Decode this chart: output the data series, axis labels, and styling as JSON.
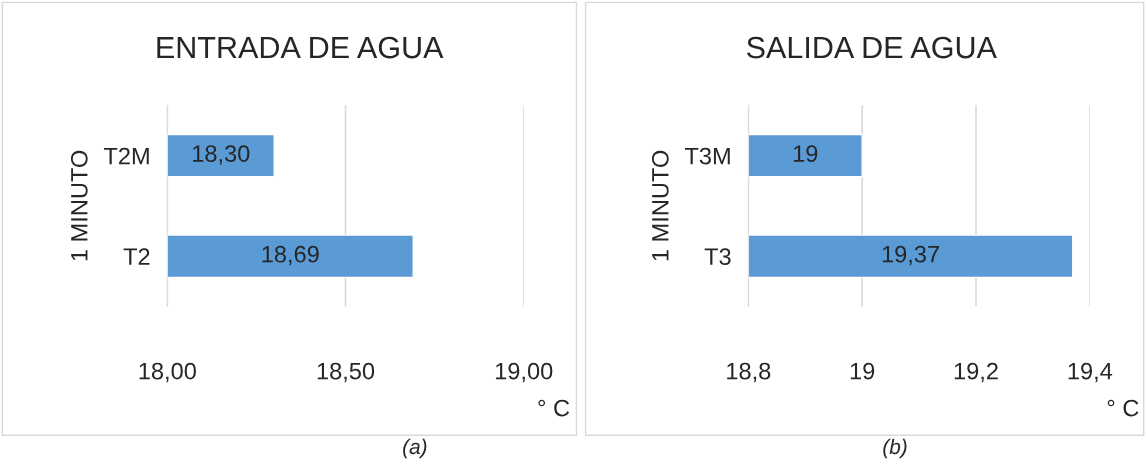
{
  "chart_data": [
    {
      "type": "bar",
      "orientation": "horizontal",
      "title": "ENTRADA DE AGUA",
      "ylabel": "1 MINUTO",
      "xlabel": "° C",
      "categories": [
        "T2M",
        "T2"
      ],
      "values": [
        18.3,
        18.69
      ],
      "value_labels": [
        "18,30",
        "18,69"
      ],
      "color": "#5b9bd5",
      "xlim": [
        18.0,
        19.0
      ],
      "xticks": [
        {
          "value": 18.0,
          "label": "18,00"
        },
        {
          "value": 18.5,
          "label": "18,50"
        },
        {
          "value": 19.0,
          "label": "19,00"
        }
      ],
      "grid": "x",
      "legend": false,
      "annotations": [
        "(a)"
      ]
    },
    {
      "type": "bar",
      "orientation": "horizontal",
      "title": "SALIDA DE AGUA",
      "ylabel": "1 MINUTO",
      "xlabel": "° C",
      "categories": [
        "T3M",
        "T3"
      ],
      "values": [
        19.0,
        19.37
      ],
      "value_labels": [
        "19",
        "19,37"
      ],
      "color": "#5b9bd5",
      "xlim": [
        18.8,
        19.4
      ],
      "xticks": [
        {
          "value": 18.8,
          "label": "18,8"
        },
        19,
        {
          "value": 19.2,
          "label": "19,2"
        },
        {
          "value": 19.4,
          "label": "19,4"
        }
      ],
      "grid": "x",
      "legend": false,
      "annotations": [
        "(b)"
      ]
    }
  ]
}
